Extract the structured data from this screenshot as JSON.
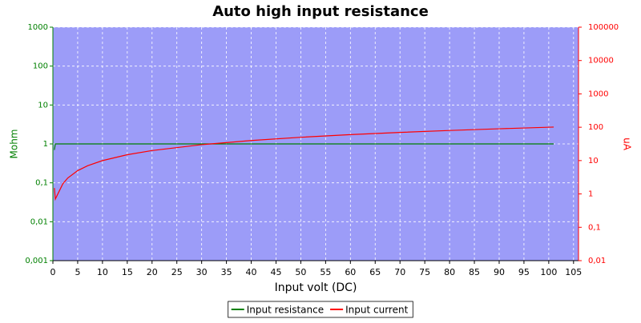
{
  "chart_data": {
    "type": "line",
    "title": "Auto high input resistance",
    "xlabel": "Input volt (DC)",
    "ylabel": "Mohm",
    "y2label": "uA",
    "x": [
      0.3,
      0.5,
      1,
      2,
      3,
      5,
      7,
      10,
      15,
      20,
      30,
      40,
      50,
      60,
      70,
      80,
      90,
      101
    ],
    "series": [
      {
        "name": "Input resistance",
        "color": "#008000",
        "values": [
          0.7,
          1,
          1,
          1,
          1,
          1,
          1,
          1,
          1,
          1,
          1,
          1,
          1,
          1,
          1,
          1,
          1,
          1
        ]
      },
      {
        "name": "Input current",
        "color": "#ff0000",
        "axis": "y2",
        "values": [
          1.5,
          0.7,
          1,
          2,
          3,
          5,
          7,
          10,
          15,
          20,
          30,
          40,
          50,
          60,
          70,
          80,
          90,
          101
        ]
      }
    ],
    "xlim": [
      0,
      106
    ],
    "xticks": [
      0,
      5,
      10,
      15,
      20,
      25,
      30,
      35,
      40,
      45,
      50,
      55,
      60,
      65,
      70,
      75,
      80,
      85,
      90,
      95,
      100,
      105
    ],
    "ylim": [
      0.001,
      1000
    ],
    "ylog": true,
    "yticks": [
      {
        "value": 0.001,
        "label": "0,001"
      },
      {
        "value": 0.01,
        "label": "0,01"
      },
      {
        "value": 0.1,
        "label": "0,1"
      },
      1,
      10,
      100,
      1000
    ],
    "y2lim": [
      0.01,
      100000
    ],
    "y2log": true,
    "y2ticks": [
      {
        "value": 0.01,
        "label": "0,01"
      },
      {
        "value": 0.1,
        "label": "0,1"
      },
      1,
      10,
      100,
      1000,
      10000,
      100000
    ],
    "grid": true,
    "legend": "bottom",
    "background": "#9c9cf8"
  }
}
